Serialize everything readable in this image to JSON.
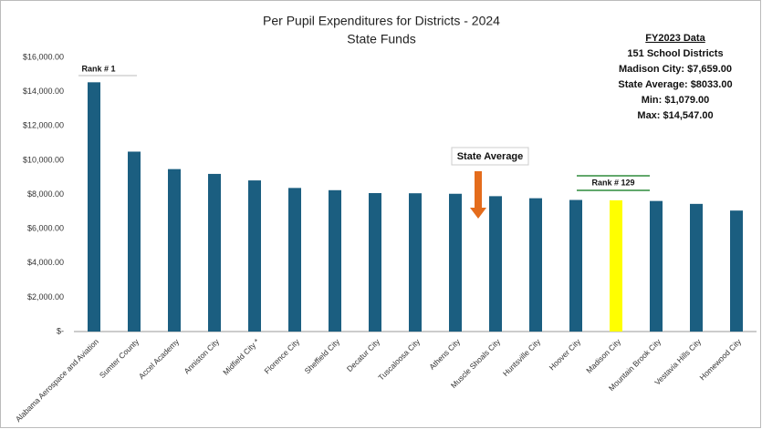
{
  "chart_data": {
    "type": "bar",
    "title": "Per Pupil Expenditures for Districts - 2024",
    "subtitle": "State Funds",
    "categories": [
      "Alabama Aerospace and Aviation",
      "Sumter County",
      "Accel Academy",
      "Anniston City",
      "Midfield City *",
      "Florence City",
      "Sheffield City",
      "Decatur City",
      "Tuscaloosa City",
      "Athens City",
      "Muscle Shoals City",
      "Huntsville City",
      "Hoover City",
      "Madison City",
      "Mountain Brook City",
      "Vestavia Hills City",
      "Homewood City"
    ],
    "values": [
      14547,
      10500,
      9480,
      9200,
      8820,
      8380,
      8250,
      8080,
      8070,
      8040,
      7900,
      7780,
      7680,
      7659,
      7620,
      7450,
      7060
    ],
    "colors": [
      "#1b5e80",
      "#1b5e80",
      "#1b5e80",
      "#1b5e80",
      "#1b5e80",
      "#1b5e80",
      "#1b5e80",
      "#1b5e80",
      "#1b5e80",
      "#1b5e80",
      "#1b5e80",
      "#1b5e80",
      "#1b5e80",
      "#ffff00",
      "#1b5e80",
      "#1b5e80",
      "#1b5e80"
    ],
    "ylim": [
      0,
      16000
    ],
    "yticks": [
      {
        "value": 0,
        "label": "$-"
      },
      {
        "value": 2000,
        "label": "$2,000.00"
      },
      {
        "value": 4000,
        "label": "$4,000.00"
      },
      {
        "value": 6000,
        "label": "$6,000.00"
      },
      {
        "value": 8000,
        "label": "$8,000.00"
      },
      {
        "value": 10000,
        "label": "$10,000.00"
      },
      {
        "value": 12000,
        "label": "$12,000.00"
      },
      {
        "value": 14000,
        "label": "$14,000.00"
      },
      {
        "value": 16000,
        "label": "$16,000.00"
      }
    ],
    "grid": false,
    "annotations": [
      "Rank # 1",
      "State Average",
      "Rank # 129"
    ],
    "info_box": [
      "FY2023 Data",
      "151 School Districts",
      "Madison City: $7,659.00",
      "State Average: $8033.00",
      "Min: $1,079.00",
      "Max: $14,547.00"
    ]
  }
}
